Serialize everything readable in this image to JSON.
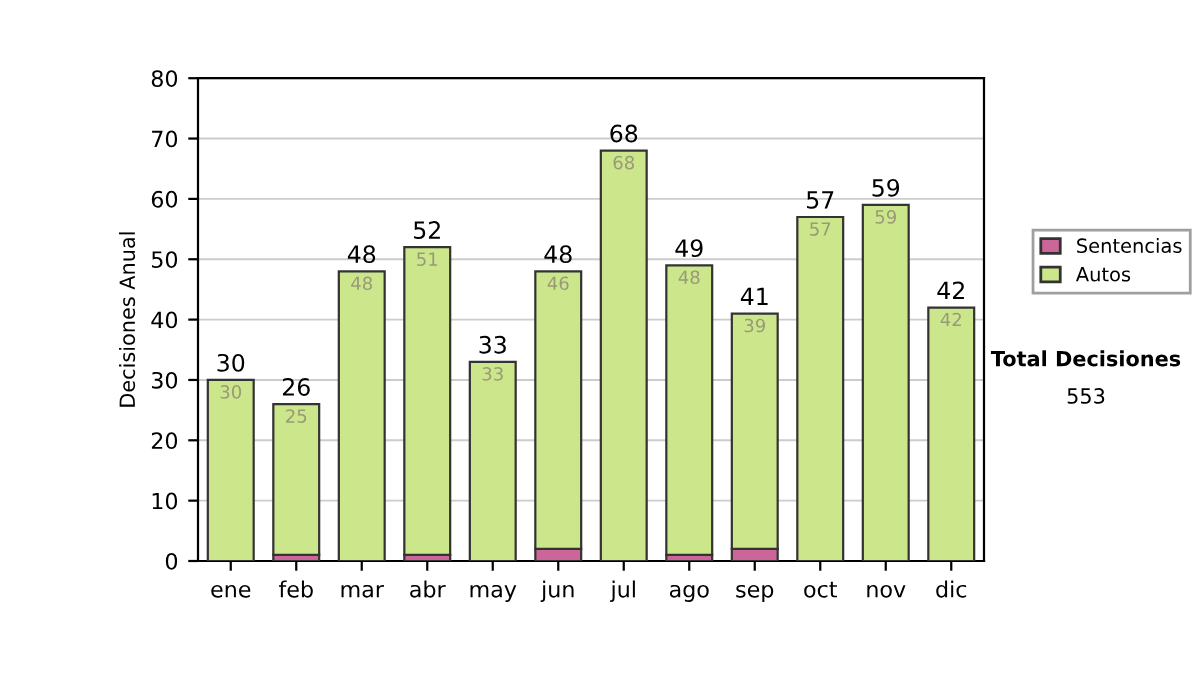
{
  "chart_data": {
    "type": "bar",
    "stacked": true,
    "ylabel": "Decisiones Anual",
    "categories": [
      "ene",
      "feb",
      "mar",
      "abr",
      "may",
      "jun",
      "jul",
      "ago",
      "sep",
      "oct",
      "nov",
      "dic"
    ],
    "series": [
      {
        "name": "Sentencias",
        "color": "#cc6699",
        "values": [
          0,
          1,
          0,
          1,
          0,
          2,
          0,
          1,
          2,
          0,
          0,
          0
        ]
      },
      {
        "name": "Autos",
        "color": "#cce68c",
        "values": [
          30,
          25,
          48,
          51,
          33,
          46,
          68,
          48,
          39,
          57,
          59,
          42
        ],
        "value_labels": [
          "30",
          "25",
          "48",
          "51",
          "33",
          "46",
          "68",
          "48",
          "39",
          "57",
          "59",
          "42"
        ]
      }
    ],
    "totals": [
      "30",
      "26",
      "48",
      "52",
      "33",
      "48",
      "68",
      "49",
      "41",
      "57",
      "59",
      "42"
    ],
    "ylim": [
      0,
      80
    ],
    "yticks": [
      0,
      10,
      20,
      30,
      40,
      50,
      60,
      70,
      80
    ],
    "grid": "y",
    "legend": "right",
    "annotations": [
      "Total Decisiones",
      "553"
    ]
  }
}
